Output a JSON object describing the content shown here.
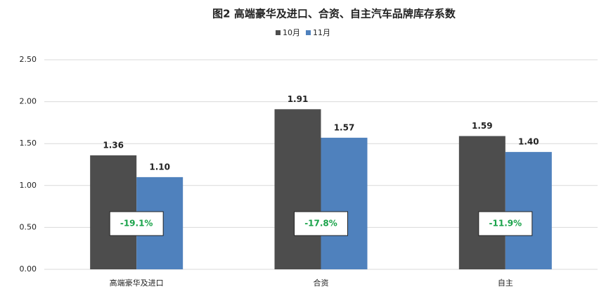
{
  "chart_data": {
    "type": "bar",
    "title": "图2  高端豪华及进口、合资、自主汽车品牌库存系数",
    "categories": [
      "高端豪华及进口",
      "合资",
      "自主"
    ],
    "series": [
      {
        "name": "10月",
        "color": "#4d4d4d",
        "values": [
          1.36,
          1.91,
          1.59
        ],
        "value_labels": [
          "1.36",
          "1.91",
          "1.59"
        ]
      },
      {
        "name": "11月",
        "color": "#4f81bd",
        "values": [
          1.1,
          1.57,
          1.4
        ],
        "value_labels": [
          "1.10",
          "1.57",
          "1.40"
        ]
      }
    ],
    "annotations": [
      "-19.1%",
      "-17.8%",
      "-11.9%"
    ],
    "ylim": [
      0,
      2.5
    ],
    "yticks": [
      {
        "value": 0,
        "label": "0.00"
      },
      {
        "value": 0.5,
        "label": "0.50"
      },
      {
        "value": 1,
        "label": "1.00"
      },
      {
        "value": 1.5,
        "label": "1.50"
      },
      {
        "value": 2,
        "label": "2.00"
      },
      {
        "value": 2.5,
        "label": "2.50"
      }
    ],
    "grid": true,
    "legend": "top"
  }
}
